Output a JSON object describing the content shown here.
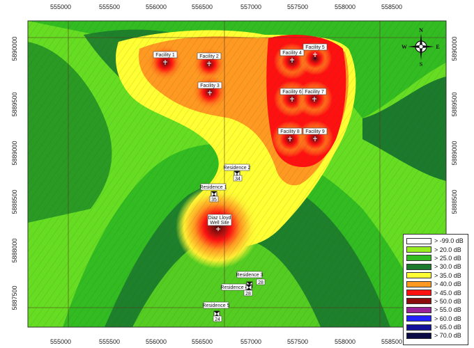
{
  "axes": {
    "x_ticks": [
      "555000",
      "555500",
      "556000",
      "556500",
      "557000",
      "557500",
      "558000",
      "558500"
    ],
    "y_ticks": [
      "5890000",
      "5889500",
      "5889000",
      "5888500",
      "5888000",
      "5887500"
    ]
  },
  "compass": {
    "n": "N",
    "s": "S",
    "e": "E",
    "w": "W"
  },
  "facilities": [
    {
      "name": "Facility 1"
    },
    {
      "name": "Facility 2"
    },
    {
      "name": "Facility 3"
    },
    {
      "name": "Facility 4"
    },
    {
      "name": "Facility 5"
    },
    {
      "name": "Facility 6"
    },
    {
      "name": "Facility 7"
    },
    {
      "name": "Facility 8"
    },
    {
      "name": "Facility 9"
    }
  ],
  "well_site": {
    "line1": "Diaz Lloyd",
    "line2": "Well Site"
  },
  "residences": [
    {
      "name": "Residence 1",
      "value": "35"
    },
    {
      "name": "Residence 2",
      "value": "34"
    },
    {
      "name": "Residence 3",
      "value": "28"
    },
    {
      "name": "Residence 4",
      "value": "28"
    },
    {
      "name": "Residence 5",
      "value": "24"
    }
  ],
  "legend": [
    {
      "label": "> -99.0 dB",
      "color": "#ffffff"
    },
    {
      "label": "> 20.0 dB",
      "color": "#99ee22"
    },
    {
      "label": "> 25.0 dB",
      "color": "#33bb22"
    },
    {
      "label": "> 30.0 dB",
      "color": "#1c7a2c"
    },
    {
      "label": "> 35.0 dB",
      "color": "#ffff33"
    },
    {
      "label": "> 40.0 dB",
      "color": "#ff9922"
    },
    {
      "label": "> 45.0 dB",
      "color": "#ff1111"
    },
    {
      "label": "> 50.0 dB",
      "color": "#8b0d0d"
    },
    {
      "label": "> 55.0 dB",
      "color": "#992299"
    },
    {
      "label": "> 60.0 dB",
      "color": "#2222ff"
    },
    {
      "label": "> 65.0 dB",
      "color": "#111199"
    },
    {
      "label": "> 70.0 dB",
      "color": "#0a0a44"
    }
  ]
}
